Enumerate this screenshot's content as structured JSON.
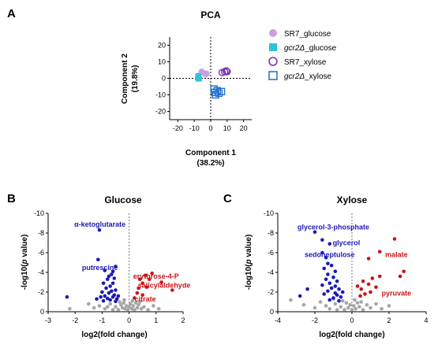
{
  "panels": {
    "A": "A",
    "B": "B",
    "C": "C"
  },
  "colors": {
    "sr7_glucose": "#c9a0dc",
    "gcr2_glucose": "#2ec4d6",
    "sr7_xylose": "#7b2fb5",
    "gcr2_xylose": "#1f6fd1",
    "down": "#1a1ab8",
    "up": "#c81414",
    "ns": "#a6a6a6",
    "label_down": "#1a1ab8",
    "label_up": "#c81414"
  },
  "chart_data": [
    {
      "id": "pca",
      "type": "scatter",
      "title": "PCA",
      "xlabel": "Component 1",
      "xlabel2": "(38.2%)",
      "ylabel": "Component 2",
      "ylabel2": "(19.8%)",
      "xlim": [
        -25,
        25
      ],
      "ylim": [
        -25,
        25
      ],
      "xticks": [
        -20,
        -10,
        0,
        10,
        20
      ],
      "yticks": [
        20,
        10,
        0,
        -10,
        -20
      ],
      "grid": false,
      "legend_position": "right",
      "series": [
        {
          "name": "SR7_glucose",
          "marker": "filled-circle",
          "color_key": "sr7_glucose",
          "points": [
            [
              -5.5,
              4.0
            ],
            [
              -4.0,
              3.0
            ],
            [
              -3.0,
              2.5
            ],
            [
              -2.5,
              2.8
            ]
          ]
        },
        {
          "name": "gcr2Δ_glucose",
          "name_base": "gcr2",
          "name_delta": "Δ",
          "name_suffix": "_glucose",
          "italic": true,
          "marker": "filled-square",
          "color_key": "gcr2_glucose",
          "points": [
            [
              -7.5,
              1.5
            ],
            [
              -7.8,
              0.5
            ],
            [
              -7.0,
              0.0
            ],
            [
              -7.5,
              -0.3
            ]
          ]
        },
        {
          "name": "SR7_xylose",
          "marker": "open-circle",
          "color_key": "sr7_xylose",
          "points": [
            [
              7.0,
              3.5
            ],
            [
              8.5,
              4.0
            ],
            [
              9.5,
              4.5
            ],
            [
              10.0,
              4.0
            ]
          ]
        },
        {
          "name": "gcr2Δ_xylose",
          "name_base": "gcr2",
          "name_delta": "Δ",
          "name_suffix": "_xylose",
          "italic": true,
          "marker": "open-square",
          "color_key": "gcr2_xylose",
          "points": [
            [
              2.0,
              -6.5
            ],
            [
              2.5,
              -8.5
            ],
            [
              4.0,
              -7.5
            ],
            [
              5.0,
              -9.0
            ],
            [
              6.5,
              -8.0
            ],
            [
              3.0,
              -10.0
            ]
          ]
        }
      ]
    },
    {
      "id": "volcano-glucose",
      "type": "scatter",
      "title": "Glucose",
      "xlabel": "log2(fold change)",
      "ylabel": "-log10(p value)",
      "ylabel_pre": "-log10(",
      "ylabel_p": "p",
      "ylabel_post": " value)",
      "xlim": [
        -3,
        2
      ],
      "ylim": [
        0,
        10
      ],
      "xticks": [
        -3,
        -2,
        -1,
        0,
        1,
        2
      ],
      "yticks": [
        0,
        2,
        4,
        6,
        8,
        10
      ],
      "yprefix": "-",
      "grid": false,
      "annotations": [
        {
          "text": "α-ketoglutarate",
          "x": -1.08,
          "y": 8.9,
          "kind": "down"
        },
        {
          "text": "putrescine",
          "x": -1.08,
          "y": 4.5,
          "kind": "down"
        },
        {
          "text": "erythrose-4-P",
          "x": 1.0,
          "y": 3.6,
          "kind": "up"
        },
        {
          "text": "salicylaldehyde",
          "x": 1.3,
          "y": 2.7,
          "kind": "up"
        },
        {
          "text": "citrate",
          "x": 0.6,
          "y": 1.3,
          "kind": "up"
        }
      ],
      "down": [
        [
          -1.1,
          8.3
        ],
        [
          -1.15,
          5.3
        ],
        [
          -2.3,
          1.5
        ],
        [
          -0.5,
          4.6
        ],
        [
          -0.6,
          4.1
        ],
        [
          -0.75,
          3.6
        ],
        [
          -0.9,
          4.2
        ],
        [
          -0.55,
          3.4
        ],
        [
          -0.8,
          3.3
        ],
        [
          -0.95,
          2.9
        ],
        [
          -0.6,
          2.9
        ],
        [
          -0.7,
          2.6
        ],
        [
          -0.85,
          2.4
        ],
        [
          -0.5,
          2.2
        ],
        [
          -0.65,
          2.1
        ],
        [
          -1.0,
          2.0
        ],
        [
          -0.75,
          1.9
        ],
        [
          -0.55,
          1.7
        ],
        [
          -0.9,
          1.6
        ],
        [
          -1.05,
          1.5
        ],
        [
          -0.6,
          1.5
        ],
        [
          -0.8,
          1.35
        ],
        [
          -0.45,
          1.3
        ],
        [
          -0.7,
          1.2
        ],
        [
          -0.95,
          1.1
        ],
        [
          -0.5,
          1.05
        ],
        [
          -1.2,
          1.3
        ],
        [
          -0.4,
          1.6
        ],
        [
          -0.65,
          3.8
        ]
      ],
      "up": [
        [
          0.85,
          3.9
        ],
        [
          0.6,
          3.7
        ],
        [
          0.4,
          3.3
        ],
        [
          0.75,
          3.3
        ],
        [
          0.5,
          2.9
        ],
        [
          1.2,
          3.0
        ],
        [
          1.6,
          2.2
        ],
        [
          0.35,
          2.4
        ],
        [
          0.65,
          2.5
        ],
        [
          0.3,
          1.9
        ],
        [
          0.2,
          1.4
        ],
        [
          0.5,
          1.7
        ]
      ],
      "ns": [
        [
          -2.2,
          0.3
        ],
        [
          -1.5,
          0.8
        ],
        [
          -1.3,
          0.4
        ],
        [
          -1.1,
          0.6
        ],
        [
          -0.9,
          0.3
        ],
        [
          -0.7,
          0.8
        ],
        [
          -0.5,
          0.5
        ],
        [
          -0.4,
          0.2
        ],
        [
          -0.3,
          0.7
        ],
        [
          -0.25,
          0.4
        ],
        [
          -0.2,
          0.9
        ],
        [
          -0.15,
          0.3
        ],
        [
          -0.1,
          0.6
        ],
        [
          -0.05,
          0.2
        ],
        [
          0.0,
          0.5
        ],
        [
          0.05,
          0.8
        ],
        [
          0.1,
          0.3
        ],
        [
          0.15,
          0.6
        ],
        [
          0.2,
          0.2
        ],
        [
          0.25,
          0.9
        ],
        [
          0.3,
          0.4
        ],
        [
          0.35,
          0.7
        ],
        [
          0.45,
          0.3
        ],
        [
          0.55,
          0.5
        ],
        [
          0.7,
          0.2
        ],
        [
          0.9,
          0.6
        ],
        [
          1.1,
          0.3
        ],
        [
          -0.6,
          0.2
        ],
        [
          -0.8,
          0.5
        ],
        [
          -0.35,
          1.0
        ],
        [
          0.12,
          1.1
        ],
        [
          -0.18,
          1.2
        ],
        [
          0.4,
          1.0
        ]
      ]
    },
    {
      "id": "volcano-xylose",
      "type": "scatter",
      "title": "Xylose",
      "xlabel": "log2(fold change)",
      "ylabel": "-log10(p value)",
      "ylabel_pre": "-log10(",
      "ylabel_p": "p",
      "ylabel_post": " value)",
      "xlim": [
        -4,
        4
      ],
      "ylim": [
        0,
        10
      ],
      "xticks": [
        -4,
        -2,
        0,
        2,
        4
      ],
      "yticks": [
        0,
        2,
        4,
        6,
        8,
        10
      ],
      "yprefix": "-",
      "grid": false,
      "annotations": [
        {
          "text": "glycerol-3-phosphate",
          "x": -1.0,
          "y": 8.6,
          "kind": "down"
        },
        {
          "text": "glycerol",
          "x": -0.3,
          "y": 7.0,
          "kind": "down"
        },
        {
          "text": "sedoheptulose",
          "x": -1.2,
          "y": 5.8,
          "kind": "down"
        },
        {
          "text": "malate",
          "x": 2.4,
          "y": 5.8,
          "kind": "up"
        },
        {
          "text": "pyruvate",
          "x": 2.4,
          "y": 1.9,
          "kind": "up"
        }
      ],
      "down": [
        [
          -2.0,
          8.1
        ],
        [
          -1.6,
          7.3
        ],
        [
          -1.2,
          6.9
        ],
        [
          -1.6,
          6.0
        ],
        [
          -1.4,
          5.5
        ],
        [
          -1.3,
          4.9
        ],
        [
          -1.5,
          4.4
        ],
        [
          -1.1,
          4.7
        ],
        [
          -0.9,
          4.1
        ],
        [
          -1.3,
          3.8
        ],
        [
          -1.0,
          3.5
        ],
        [
          -1.4,
          3.3
        ],
        [
          -0.8,
          3.1
        ],
        [
          -1.2,
          2.9
        ],
        [
          -1.6,
          2.7
        ],
        [
          -0.9,
          2.6
        ],
        [
          -1.1,
          2.4
        ],
        [
          -0.7,
          2.3
        ],
        [
          -1.3,
          2.1
        ],
        [
          -0.9,
          1.9
        ],
        [
          -2.4,
          2.3
        ],
        [
          -2.8,
          1.6
        ],
        [
          -0.6,
          1.5
        ],
        [
          -1.0,
          1.4
        ],
        [
          -0.8,
          1.7
        ],
        [
          -1.5,
          1.8
        ],
        [
          -0.5,
          2.0
        ],
        [
          -1.2,
          1.2
        ],
        [
          -0.7,
          1.1
        ]
      ],
      "up": [
        [
          2.3,
          7.4
        ],
        [
          1.5,
          6.1
        ],
        [
          0.9,
          5.4
        ],
        [
          2.8,
          4.1
        ],
        [
          2.6,
          3.6
        ],
        [
          1.5,
          3.6
        ],
        [
          1.1,
          3.4
        ],
        [
          0.6,
          3.1
        ],
        [
          0.9,
          2.8
        ],
        [
          1.3,
          2.5
        ],
        [
          0.5,
          2.3
        ],
        [
          1.0,
          2.0
        ],
        [
          0.7,
          1.8
        ],
        [
          0.45,
          1.6
        ],
        [
          0.3,
          2.6
        ]
      ],
      "ns": [
        [
          -3.3,
          1.2
        ],
        [
          -2.6,
          0.7
        ],
        [
          -2.0,
          0.4
        ],
        [
          -1.7,
          1.0
        ],
        [
          -1.4,
          0.6
        ],
        [
          -1.2,
          0.3
        ],
        [
          -0.9,
          0.8
        ],
        [
          -0.6,
          0.5
        ],
        [
          -0.4,
          0.2
        ],
        [
          -0.3,
          0.9
        ],
        [
          -0.2,
          0.4
        ],
        [
          -0.1,
          0.7
        ],
        [
          0.0,
          0.2
        ],
        [
          0.1,
          0.6
        ],
        [
          0.2,
          0.3
        ],
        [
          0.3,
          0.9
        ],
        [
          0.4,
          0.5
        ],
        [
          0.6,
          0.2
        ],
        [
          0.8,
          0.7
        ],
        [
          1.0,
          0.4
        ],
        [
          1.3,
          0.8
        ],
        [
          1.6,
          0.3
        ],
        [
          2.0,
          0.6
        ],
        [
          -0.5,
          1.1
        ],
        [
          0.15,
          1.2
        ],
        [
          -0.8,
          0.2
        ],
        [
          0.5,
          1.0
        ],
        [
          -1.0,
          1.3
        ]
      ]
    }
  ]
}
